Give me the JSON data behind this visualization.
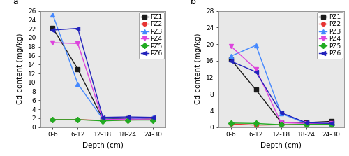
{
  "x_labels": [
    "0-6",
    "6-12",
    "12-18",
    "18-24",
    "24-30"
  ],
  "x_vals": [
    0,
    1,
    2,
    3,
    4
  ],
  "subplot_a": {
    "title": "a",
    "ylim": [
      0,
      26
    ],
    "yticks": [
      0,
      2,
      4,
      6,
      8,
      10,
      12,
      14,
      16,
      18,
      20,
      22,
      24,
      26
    ],
    "ylabel": "Cd content (mg/kg)",
    "xlabel": "Depth (cm)",
    "series": {
      "PZ1": {
        "values": [
          22.2,
          13.0,
          1.8,
          2.0,
          1.8
        ],
        "color": "#1a1a1a",
        "marker": "s",
        "linestyle": "-"
      },
      "PZ2": {
        "values": [
          1.7,
          1.7,
          1.5,
          1.6,
          1.7
        ],
        "color": "#e63333",
        "marker": "o",
        "linestyle": "-"
      },
      "PZ3": {
        "values": [
          25.2,
          9.7,
          1.8,
          1.8,
          2.1
        ],
        "color": "#4488ff",
        "marker": "^",
        "linestyle": "-"
      },
      "PZ4": {
        "values": [
          18.9,
          18.7,
          1.7,
          1.8,
          1.8
        ],
        "color": "#dd44dd",
        "marker": "v",
        "linestyle": "-"
      },
      "PZ5": {
        "values": [
          1.7,
          1.7,
          1.4,
          1.6,
          1.6
        ],
        "color": "#22aa22",
        "marker": "D",
        "linestyle": "-"
      },
      "PZ6": {
        "values": [
          21.7,
          22.1,
          2.2,
          2.3,
          2.2
        ],
        "color": "#2222bb",
        "marker": "<",
        "linestyle": "-"
      }
    }
  },
  "subplot_b": {
    "title": "b",
    "ylim": [
      0,
      28
    ],
    "yticks": [
      0,
      4,
      8,
      12,
      16,
      20,
      24,
      28
    ],
    "ylabel": "Cd content (mg/kg)",
    "xlabel": "Depth (cm)",
    "series": {
      "PZ1": {
        "values": [
          16.3,
          9.0,
          1.2,
          1.1,
          1.4
        ],
        "color": "#1a1a1a",
        "marker": "s",
        "linestyle": "-"
      },
      "PZ2": {
        "values": [
          0.8,
          0.5,
          0.6,
          0.6,
          0.7
        ],
        "color": "#e63333",
        "marker": "o",
        "linestyle": "-"
      },
      "PZ3": {
        "values": [
          17.1,
          19.7,
          3.3,
          0.9,
          0.8
        ],
        "color": "#4488ff",
        "marker": "^",
        "linestyle": "-"
      },
      "PZ4": {
        "values": [
          19.5,
          14.0,
          1.1,
          0.9,
          0.9
        ],
        "color": "#dd44dd",
        "marker": "v",
        "linestyle": "-"
      },
      "PZ5": {
        "values": [
          1.0,
          0.9,
          0.6,
          0.7,
          0.7
        ],
        "color": "#22aa22",
        "marker": "D",
        "linestyle": "-"
      },
      "PZ6": {
        "values": [
          15.9,
          13.3,
          3.5,
          1.1,
          0.9
        ],
        "color": "#2222bb",
        "marker": "<",
        "linestyle": "-"
      }
    }
  },
  "legend_order": [
    "PZ1",
    "PZ2",
    "PZ3",
    "PZ4",
    "PZ5",
    "PZ6"
  ],
  "marker_size": 4,
  "linewidth": 1.0,
  "tick_fontsize": 6.5,
  "label_fontsize": 7.5,
  "legend_fontsize": 6.5,
  "title_fontsize": 9,
  "facecolor": "#e8e8e8",
  "fig_facecolor": "#ffffff"
}
